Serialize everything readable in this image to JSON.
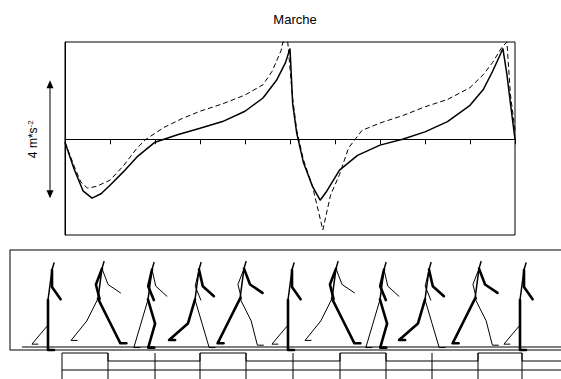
{
  "chart_data": {
    "type": "line",
    "title": "Marche",
    "xlim": [
      0,
      100
    ],
    "xticks": [
      0,
      10,
      20,
      30,
      40,
      50,
      60,
      70,
      80,
      90,
      100
    ],
    "ylim": [
      -3.25,
      3.3
    ],
    "yticks": [
      0
    ],
    "grid": true,
    "tick_labels": false,
    "scale_bar": {
      "value": 4,
      "label": "4 m*s-2"
    },
    "series": [
      {
        "color": "#000000",
        "line_style": "solid",
        "x": [
          0,
          2,
          4,
          6,
          8,
          10,
          13,
          16,
          20,
          25,
          30,
          35,
          40,
          44,
          47,
          49,
          50,
          50.6,
          51.5,
          53,
          55,
          56.7,
          58,
          61,
          65,
          70,
          75,
          80,
          85,
          90,
          93,
          95,
          96.5,
          97.3,
          98.2,
          99,
          100
        ],
        "values": [
          -0.1,
          -1.0,
          -1.75,
          -2.0,
          -1.85,
          -1.56,
          -1.1,
          -0.6,
          -0.1,
          0.15,
          0.37,
          0.6,
          0.95,
          1.4,
          2.0,
          2.6,
          3.08,
          1.2,
          0.2,
          -0.8,
          -1.6,
          -2.07,
          -1.8,
          -1.05,
          -0.55,
          -0.2,
          0.0,
          0.25,
          0.6,
          1.15,
          1.7,
          2.3,
          2.8,
          3.08,
          2.2,
          1.2,
          0
        ]
      },
      {
        "color": "#000000",
        "line_style": "dashed",
        "x": [
          0,
          2,
          3.5,
          5,
          7,
          10,
          13,
          16,
          18,
          22,
          26,
          30,
          35,
          40,
          44,
          46,
          48,
          48.4,
          49.5,
          50.5,
          51.5,
          53,
          55,
          57.3,
          59,
          61,
          63,
          66,
          70,
          75,
          80,
          85,
          90,
          93,
          95,
          97,
          98.2,
          99,
          100
        ],
        "values": [
          -0.1,
          -0.9,
          -1.45,
          -1.66,
          -1.6,
          -1.39,
          -0.9,
          -0.3,
          0.0,
          0.4,
          0.7,
          0.95,
          1.2,
          1.5,
          1.85,
          2.3,
          3.0,
          3.29,
          3.3,
          1.5,
          0.3,
          -0.7,
          -1.6,
          -3.08,
          -1.9,
          -1.2,
          -0.3,
          0.3,
          0.55,
          0.8,
          1.1,
          1.35,
          1.75,
          2.2,
          2.6,
          3.1,
          3.3,
          1.5,
          0.3
        ]
      }
    ]
  }
}
